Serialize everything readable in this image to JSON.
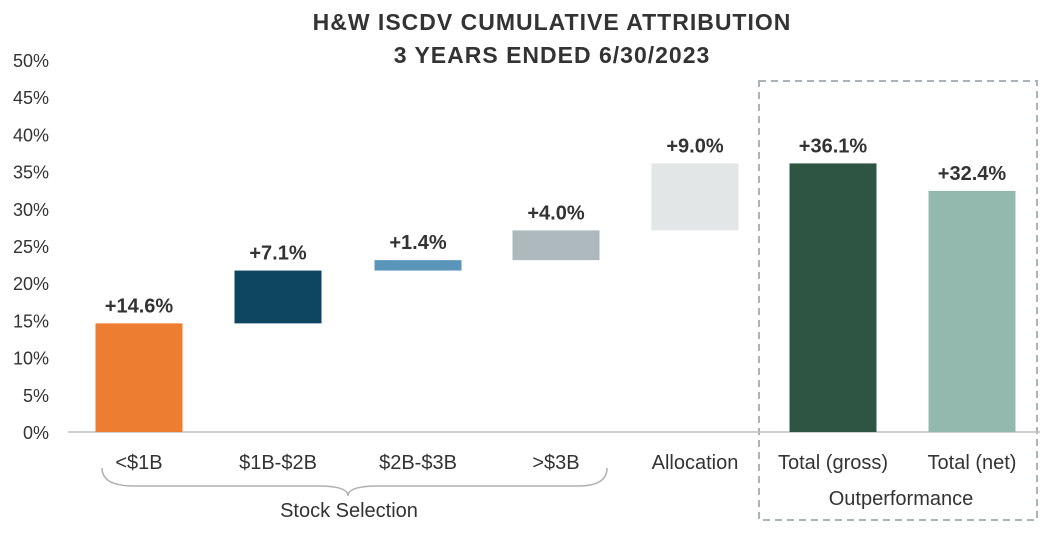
{
  "chart_data": {
    "type": "bar",
    "subtype": "waterfall",
    "title": "H&W ISCDV CUMULATIVE ATTRIBUTION",
    "subtitle": "3 YEARS ENDED 6/30/2023",
    "ylim": [
      0,
      50
    ],
    "yticks": [
      "0%",
      "5%",
      "10%",
      "15%",
      "20%",
      "25%",
      "30%",
      "35%",
      "40%",
      "45%",
      "50%"
    ],
    "categories": [
      "<$1B",
      "$1B-$2B",
      "$2B-$3B",
      ">$3B",
      "Allocation",
      "Total (gross)",
      "Total (net)"
    ],
    "bars": [
      {
        "category": "<$1B",
        "start": 0,
        "end": 14.6,
        "label": "+14.6%",
        "color": "#ED7D31"
      },
      {
        "category": "$1B-$2B",
        "start": 14.6,
        "end": 21.7,
        "label": "+7.1%",
        "color": "#0E4662"
      },
      {
        "category": "$2B-$3B",
        "start": 21.7,
        "end": 23.1,
        "label": "+1.4%",
        "color": "#5B96BA"
      },
      {
        "category": ">$3B",
        "start": 23.1,
        "end": 27.1,
        "label": "+4.0%",
        "color": "#ADB9BC"
      },
      {
        "category": "Allocation",
        "start": 27.1,
        "end": 36.1,
        "label": "+9.0%",
        "color": "#E2E6E6"
      },
      {
        "category": "Total (gross)",
        "start": 0,
        "end": 36.1,
        "label": "+36.1%",
        "color": "#2E5444"
      },
      {
        "category": "Total (net)",
        "start": 0,
        "end": 32.4,
        "label": "+32.4%",
        "color": "#93B9AE"
      }
    ],
    "groups": [
      {
        "label": "Stock Selection",
        "style": "brace"
      },
      {
        "label": "Outperformance",
        "style": "dashed-box"
      }
    ],
    "grid": false,
    "legend": "none"
  }
}
